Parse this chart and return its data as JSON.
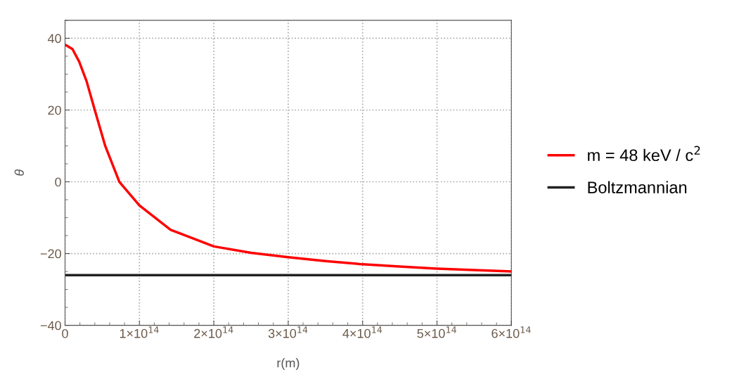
{
  "chart_data": {
    "type": "line",
    "xlabel": "r(m)",
    "ylabel": "θ",
    "xlim": [
      0,
      600000000000000.0
    ],
    "ylim": [
      -40,
      45
    ],
    "xticks": [
      0,
      {
        "value": 100000000000000.0,
        "label": "1×10$^{14}$"
      },
      {
        "value": 200000000000000.0,
        "label": "2×10$^{14}$"
      },
      {
        "value": 300000000000000.0,
        "label": "3×10$^{14}$"
      },
      {
        "value": 400000000000000.0,
        "label": "4×10$^{14}$"
      },
      {
        "value": 500000000000000.0,
        "label": "5×10$^{14}$"
      },
      {
        "value": 600000000000000.0,
        "label": "6×10$^{14}$"
      }
    ],
    "yticks": [
      {
        "value": -40,
        "label": "−40"
      },
      {
        "value": -20,
        "label": "−20"
      },
      0,
      20,
      40
    ],
    "grid": true,
    "legend": "right",
    "line_style": "solid",
    "marker": "none",
    "series": [
      {
        "name": "m = 48 keV / c$^{2}$",
        "color": "#ff0000",
        "x": [
          0,
          10000000000000.0,
          19000000000000.0,
          29000000000000.0,
          40000000000000.0,
          54000000000000.0,
          73000000000000.0,
          100000000000000.0,
          142000000000000.0,
          200000000000000.0,
          250000000000000.0,
          300000000000000.0,
          350000000000000.0,
          400000000000000.0,
          450000000000000.0,
          500000000000000.0,
          550000000000000.0,
          600000000000000.0
        ],
        "values": [
          38.2,
          37,
          33.5,
          28,
          20,
          10,
          0,
          -6.6,
          -13.4,
          -18,
          -19.8,
          -21,
          -22.1,
          -23,
          -23.6,
          -24.2,
          -24.6,
          -25
        ]
      },
      {
        "name": "Boltzmannian",
        "color": "#222222",
        "x": [
          0,
          600000000000000.0
        ],
        "values": [
          -26,
          -26
        ]
      }
    ]
  }
}
